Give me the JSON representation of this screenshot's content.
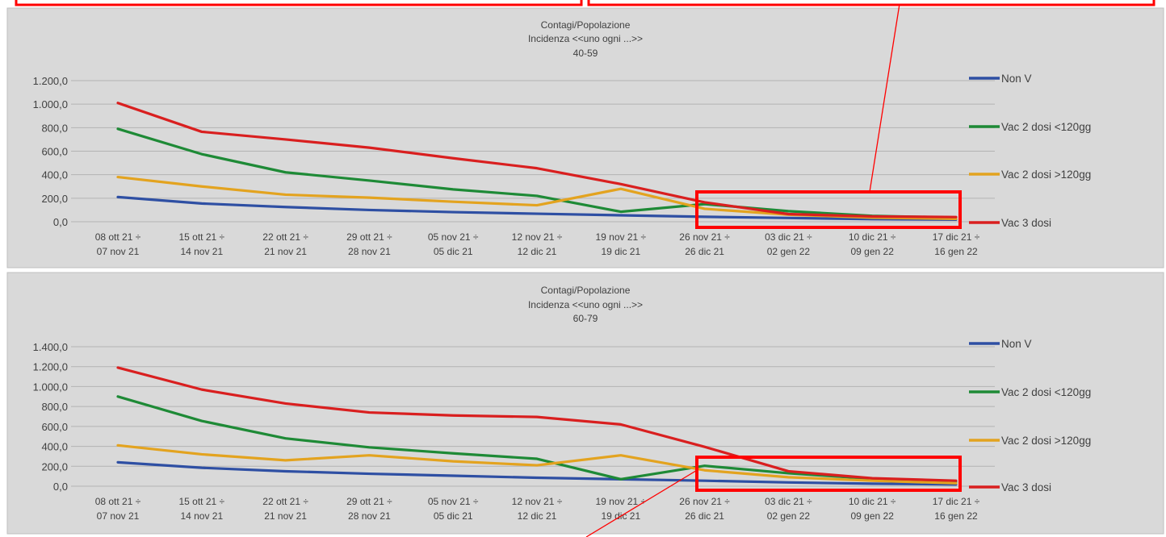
{
  "annotation_color": "#ff0000",
  "chart_data": [
    {
      "type": "line",
      "title": [
        "Contagi/Popolazione",
        "Incidenza <<uno ogni ...>>",
        "40-59"
      ],
      "categories": [
        [
          "08 ott 21 ÷",
          "07 nov 21"
        ],
        [
          "15 ott 21 ÷",
          "14 nov 21"
        ],
        [
          "22 ott 21 ÷",
          "21 nov 21"
        ],
        [
          "29 ott 21 ÷",
          "28 nov 21"
        ],
        [
          "05 nov 21 ÷",
          "05 dic 21"
        ],
        [
          "12 nov 21 ÷",
          "12 dic 21"
        ],
        [
          "19 nov 21 ÷",
          "19 dic 21"
        ],
        [
          "26 nov 21 ÷",
          "26 dic 21"
        ],
        [
          "03 dic 21 ÷",
          "02 gen 22"
        ],
        [
          "10 dic 21 ÷",
          "09 gen 22"
        ],
        [
          "17 dic 21 ÷",
          "16 gen 22"
        ]
      ],
      "y_ticks": [
        "0,0",
        "200,0",
        "400,0",
        "600,0",
        "800,0",
        "1.000,0",
        "1.200,0"
      ],
      "ylim": [
        0,
        1200
      ],
      "grid": true,
      "legend_position": "right",
      "series": [
        {
          "name": "Non V",
          "color": "#2e4fa3",
          "values": [
            210,
            155,
            125,
            100,
            82,
            68,
            55,
            42,
            32,
            22,
            18
          ]
        },
        {
          "name": "Vac 2 dosi <120gg",
          "color": "#1e8a36",
          "values": [
            790,
            575,
            420,
            350,
            275,
            220,
            85,
            150,
            90,
            50,
            35
          ]
        },
        {
          "name": "Vac 2 dosi >120gg",
          "color": "#e3a31f",
          "values": [
            380,
            300,
            230,
            205,
            170,
            140,
            280,
            110,
            60,
            35,
            25
          ]
        },
        {
          "name": "Vac 3 dosi",
          "color": "#d91f1f",
          "values": [
            1010,
            765,
            700,
            630,
            540,
            455,
            320,
            165,
            65,
            45,
            40
          ]
        }
      ]
    },
    {
      "type": "line",
      "title": [
        "Contagi/Popolazione",
        "Incidenza <<uno ogni ...>>",
        "60-79"
      ],
      "categories": [
        [
          "08 ott 21 ÷",
          "07 nov 21"
        ],
        [
          "15 ott 21 ÷",
          "14 nov 21"
        ],
        [
          "22 ott 21 ÷",
          "21 nov 21"
        ],
        [
          "29 ott 21 ÷",
          "28 nov 21"
        ],
        [
          "05 nov 21 ÷",
          "05 dic 21"
        ],
        [
          "12 nov 21 ÷",
          "12 dic 21"
        ],
        [
          "19 nov 21 ÷",
          "19 dic 21"
        ],
        [
          "26 nov 21 ÷",
          "26 dic 21"
        ],
        [
          "03 dic 21 ÷",
          "02 gen 22"
        ],
        [
          "10 dic 21 ÷",
          "09 gen 22"
        ],
        [
          "17 dic 21 ÷",
          "16 gen 22"
        ]
      ],
      "y_ticks": [
        "0,0",
        "200,0",
        "400,0",
        "600,0",
        "800,0",
        "1.000,0",
        "1.200,0",
        "1.400,0"
      ],
      "ylim": [
        0,
        1400
      ],
      "grid": true,
      "legend_position": "right",
      "series": [
        {
          "name": "Non V",
          "color": "#2e4fa3",
          "values": [
            240,
            185,
            150,
            125,
            105,
            85,
            70,
            55,
            38,
            25,
            18
          ]
        },
        {
          "name": "Vac 2 dosi <120gg",
          "color": "#1e8a36",
          "values": [
            900,
            655,
            480,
            390,
            330,
            275,
            70,
            205,
            130,
            75,
            40
          ]
        },
        {
          "name": "Vac 2 dosi >120gg",
          "color": "#e3a31f",
          "values": [
            410,
            320,
            260,
            310,
            250,
            210,
            310,
            160,
            90,
            55,
            30
          ]
        },
        {
          "name": "Vac 3 dosi",
          "color": "#d91f1f",
          "values": [
            1190,
            970,
            830,
            740,
            710,
            695,
            620,
            395,
            150,
            80,
            55
          ]
        }
      ]
    }
  ]
}
